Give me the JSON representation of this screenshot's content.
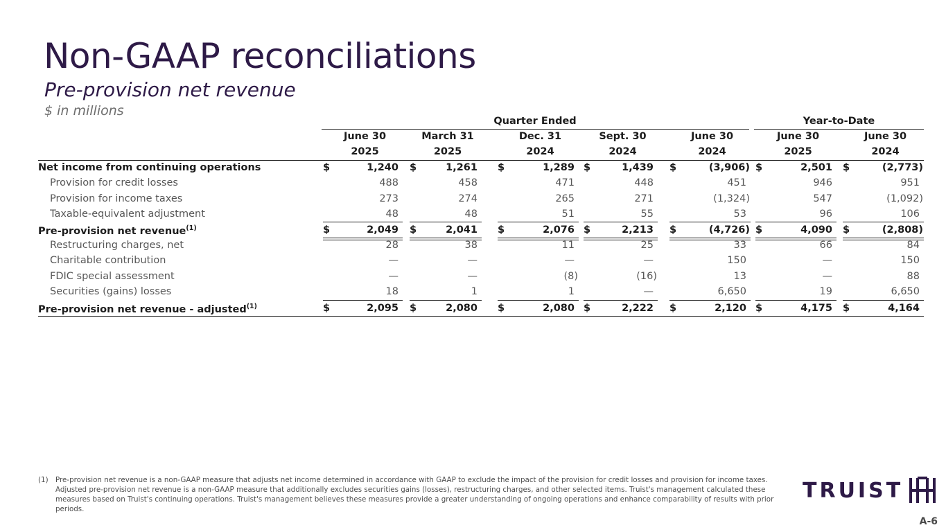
{
  "title": "Non-GAAP reconciliations",
  "subtitle": "Pre-provision net revenue",
  "units": "$ in millions",
  "groups": {
    "quarter": "Quarter Ended",
    "ytd": "Year-to-Date"
  },
  "columns": [
    {
      "month": "June 30",
      "year": "2025"
    },
    {
      "month": "March 31",
      "year": "2025"
    },
    {
      "month": "Dec. 31",
      "year": "2024"
    },
    {
      "month": "Sept. 30",
      "year": "2024"
    },
    {
      "month": "June 30",
      "year": "2024"
    },
    {
      "month": "June 30",
      "year": "2025"
    },
    {
      "month": "June 30",
      "year": "2024"
    }
  ],
  "currency_symbol": "$",
  "footnote_marker": "(1)",
  "rows": [
    {
      "label": "Net income from continuing operations",
      "values": [
        "1,240",
        "1,261",
        "1,289",
        "1,439",
        "(3,906)",
        "2,501",
        "(2,773)"
      ]
    },
    {
      "label": "Provision for credit losses",
      "values": [
        "488",
        "458",
        "471",
        "448",
        "451",
        "946",
        "951"
      ]
    },
    {
      "label": "Provision for income taxes",
      "values": [
        "273",
        "274",
        "265",
        "271",
        "(1,324)",
        "547",
        "(1,092)"
      ]
    },
    {
      "label": "Taxable-equivalent adjustment",
      "values": [
        "48",
        "48",
        "51",
        "55",
        "53",
        "96",
        "106"
      ]
    },
    {
      "label": "Pre-provision net revenue",
      "values": [
        "2,049",
        "2,041",
        "2,076",
        "2,213",
        "(4,726)",
        "4,090",
        "(2,808)"
      ]
    },
    {
      "label": "Restructuring charges, net",
      "values": [
        "28",
        "38",
        "11",
        "25",
        "33",
        "66",
        "84"
      ]
    },
    {
      "label": "Charitable contribution",
      "values": [
        "—",
        "—",
        "—",
        "—",
        "150",
        "—",
        "150"
      ]
    },
    {
      "label": "FDIC special assessment",
      "values": [
        "—",
        "—",
        "(8)",
        "(16)",
        "13",
        "—",
        "88"
      ]
    },
    {
      "label": "Securities (gains) losses",
      "values": [
        "18",
        "1",
        "1",
        "—",
        "6,650",
        "19",
        "6,650"
      ]
    },
    {
      "label": "Pre-provision net revenue - adjusted",
      "values": [
        "2,095",
        "2,080",
        "2,080",
        "2,222",
        "2,120",
        "4,175",
        "4,164"
      ]
    }
  ],
  "footnote": {
    "number": "(1)",
    "text": "Pre-provision net revenue is a non-GAAP measure that adjusts net income determined in accordance with GAAP to exclude the impact of the provision for credit losses and provision for income taxes. Adjusted pre-provision net revenue is a non-GAAP measure that additionally excludes securities gains (losses), restructuring charges, and other selected items. Truist's management calculated these measures based on Truist's continuing operations. Truist's management believes these measures provide a greater understanding of ongoing operations and enhance comparability of results with prior periods."
  },
  "logo": {
    "text": "TRUIST",
    "icon": "truist-logo-mark-icon"
  },
  "page_number": "A-6",
  "colors": {
    "brand_purple": "#2e1a47",
    "text": "#1c1c1c"
  }
}
